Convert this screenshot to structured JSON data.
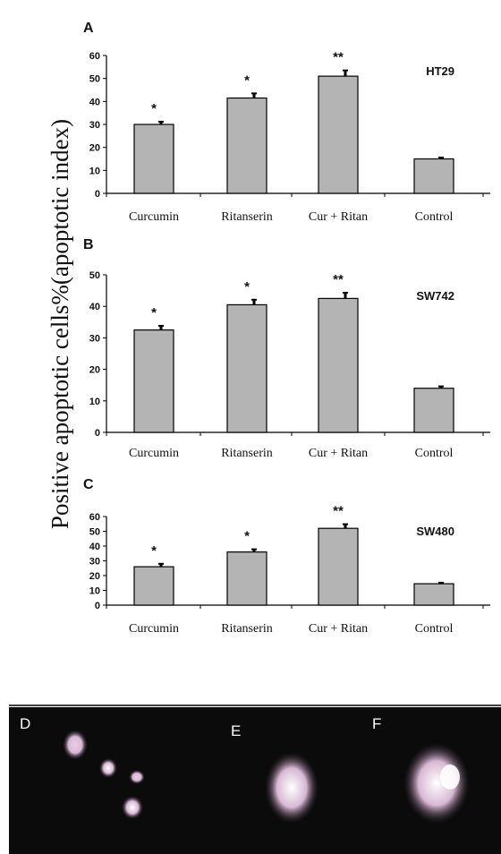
{
  "figure": {
    "ylabel": "Positive apoptotic cells%(apoptotic index)",
    "micro_panels": [
      "D",
      "E",
      "F"
    ]
  },
  "chart_data": [
    {
      "type": "bar",
      "panel": "A",
      "cell_line": "HT29",
      "categories": [
        "Curcumin",
        "Ritanserin",
        "Cur + Ritan",
        "Control"
      ],
      "values": [
        30,
        41.5,
        51,
        15
      ],
      "errors": [
        1.2,
        2.0,
        2.5,
        0.6
      ],
      "significance": [
        "*",
        "*",
        "**",
        ""
      ],
      "yticks": [
        0,
        10,
        20,
        30,
        40,
        50,
        60
      ],
      "ylim": [
        0,
        60
      ],
      "bar_color": "#b4b4b4"
    },
    {
      "type": "bar",
      "panel": "B",
      "cell_line": "SW742",
      "categories": [
        "Curcumin",
        "Ritanserin",
        "Cur + Ritan",
        "Control"
      ],
      "values": [
        32.5,
        40.5,
        42.5,
        14
      ],
      "errors": [
        1.3,
        1.6,
        1.8,
        0.6
      ],
      "significance": [
        "*",
        "*",
        "**",
        ""
      ],
      "yticks": [
        0,
        10,
        20,
        30,
        40,
        50
      ],
      "ylim": [
        0,
        50
      ],
      "bar_color": "#b4b4b4"
    },
    {
      "type": "bar",
      "panel": "C",
      "cell_line": "SW480",
      "categories": [
        "Curcumin",
        "Ritanserin",
        "Cur + Ritan",
        "Control"
      ],
      "values": [
        26,
        36,
        52,
        14.5
      ],
      "errors": [
        2.0,
        1.8,
        2.8,
        0.7
      ],
      "significance": [
        "*",
        "*",
        "**",
        ""
      ],
      "yticks": [
        0,
        10,
        20,
        30,
        40,
        50,
        60
      ],
      "ylim": [
        0,
        60
      ],
      "bar_color": "#b4b4b4"
    }
  ]
}
